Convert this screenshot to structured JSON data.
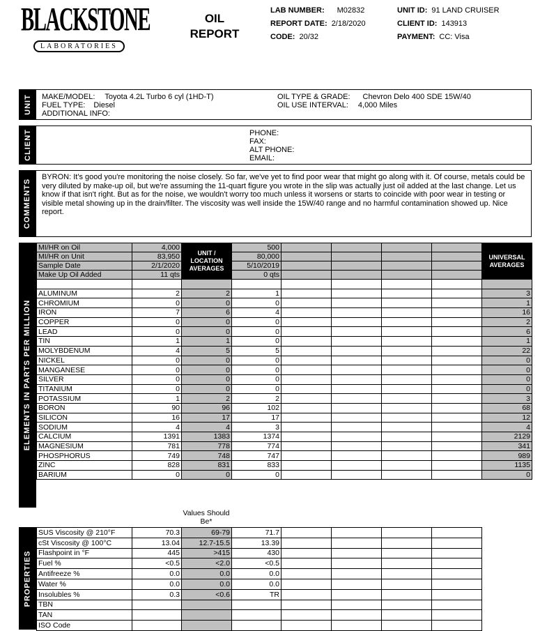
{
  "logo": {
    "name": "BLACKSTONE",
    "sub": "LABORATORIES"
  },
  "report_title": [
    "OIL",
    "REPORT"
  ],
  "header": {
    "lab_number_label": "LAB NUMBER:",
    "lab_number": "M02832",
    "report_date_label": "REPORT DATE:",
    "report_date": "2/18/2020",
    "code_label": "CODE:",
    "code": "20/32",
    "unit_id_label": "UNIT ID:",
    "unit_id": "91 LAND CRUISER",
    "client_id_label": "CLIENT ID:",
    "client_id": "143913",
    "payment_label": "PAYMENT:",
    "payment": "CC: Visa"
  },
  "unit": {
    "section": "UNIT",
    "make_label": "MAKE/MODEL:",
    "make": "Toyota 4.2L Turbo 6 cyl (1HD-T)",
    "fuel_label": "FUEL TYPE:",
    "fuel": "Diesel",
    "info_label": "ADDITIONAL INFO:",
    "oil_label": "OIL TYPE & GRADE:",
    "oil": "Chevron Delo 400 SDE 15W/40",
    "interval_label": "OIL USE INTERVAL:",
    "interval": "4,000 Miles"
  },
  "client": {
    "section": "CLIENT",
    "phone": "PHONE:",
    "fax": "FAX:",
    "alt": "ALT PHONE:",
    "email": "EMAIL:"
  },
  "comments": {
    "section": "COMMENTS",
    "text": "BYRON:  It's good you're monitoring the noise closely. So far, we've yet to find poor wear that might go along with it. Of course, metals could be very diluted by make-up oil, but we're assuming the 11-quart figure you wrote in the slip was actually just oil added at the last change. Let us know if that isn't right. But as for the noise, we wouldn't worry too much unless it worsens or starts to coincide with poor wear in testing or visible metal showing up in the drain/filter. The viscosity was well inside the 15W/40 range and no harmful contamination showed up. Nice report."
  },
  "table": {
    "avg_header": "UNIT / LOCATION AVERAGES",
    "universal_header": "UNIVERSAL AVERAGES",
    "elements_section": "ELEMENTS IN PARTS PER MILLION",
    "info_rows": [
      {
        "label": "MI/HR on Oil",
        "c1": "4,000",
        "c2": "500"
      },
      {
        "label": "MI/HR on Unit",
        "c1": "83,950",
        "c2": "80,000"
      },
      {
        "label": "Sample Date",
        "c1": "2/1/2020",
        "c2": "5/10/2019"
      },
      {
        "label": "Make Up Oil Added",
        "c1": "11 qts",
        "c2": "0 qts"
      }
    ],
    "elements": [
      [
        "ALUMINUM",
        "2",
        "2",
        "1",
        "3"
      ],
      [
        "CHROMIUM",
        "0",
        "0",
        "0",
        "1"
      ],
      [
        "IRON",
        "7",
        "6",
        "4",
        "16"
      ],
      [
        "COPPER",
        "0",
        "0",
        "0",
        "2"
      ],
      [
        "LEAD",
        "0",
        "0",
        "0",
        "6"
      ],
      [
        "TIN",
        "1",
        "1",
        "0",
        "1"
      ],
      [
        "MOLYBDENUM",
        "4",
        "5",
        "5",
        "22"
      ],
      [
        "NICKEL",
        "0",
        "0",
        "0",
        "0"
      ],
      [
        "MANGANESE",
        "0",
        "0",
        "0",
        "0"
      ],
      [
        "SILVER",
        "0",
        "0",
        "0",
        "0"
      ],
      [
        "TITANIUM",
        "0",
        "0",
        "0",
        "0"
      ],
      [
        "POTASSIUM",
        "1",
        "2",
        "2",
        "3"
      ],
      [
        "BORON",
        "90",
        "96",
        "102",
        "68"
      ],
      [
        "SILICON",
        "16",
        "17",
        "17",
        "12"
      ],
      [
        "SODIUM",
        "4",
        "4",
        "3",
        "4"
      ],
      [
        "CALCIUM",
        "1391",
        "1383",
        "1374",
        "2129"
      ],
      [
        "MAGNESIUM",
        "781",
        "778",
        "774",
        "341"
      ],
      [
        "PHOSPHORUS",
        "749",
        "748",
        "747",
        "989"
      ],
      [
        "ZINC",
        "828",
        "831",
        "833",
        "1135"
      ],
      [
        "BARIUM",
        "0",
        "0",
        "0",
        "0"
      ]
    ],
    "should_be": "Values Should Be*",
    "properties_section": "PROPERTIES",
    "properties": [
      [
        "SUS Viscosity @ 210°F",
        "70.3",
        "69-79",
        "71.7"
      ],
      [
        "cSt Viscosity @ 100°C",
        "13.04",
        "12.7-15.5",
        "13.39"
      ],
      [
        "Flashpoint in °F",
        "445",
        ">415",
        "430"
      ],
      [
        "Fuel %",
        "<0.5",
        "<2.0",
        "<0.5"
      ],
      [
        "Antifreeze %",
        "0.0",
        "0.0",
        "0.0"
      ],
      [
        "Water %",
        "0.0",
        "0.0",
        "0.0"
      ],
      [
        "Insolubles %",
        "0.3",
        "<0.6",
        "TR"
      ],
      [
        "TBN",
        "",
        "",
        ""
      ],
      [
        "TAN",
        "",
        "",
        ""
      ],
      [
        "ISO Code",
        "",
        "",
        ""
      ]
    ]
  }
}
